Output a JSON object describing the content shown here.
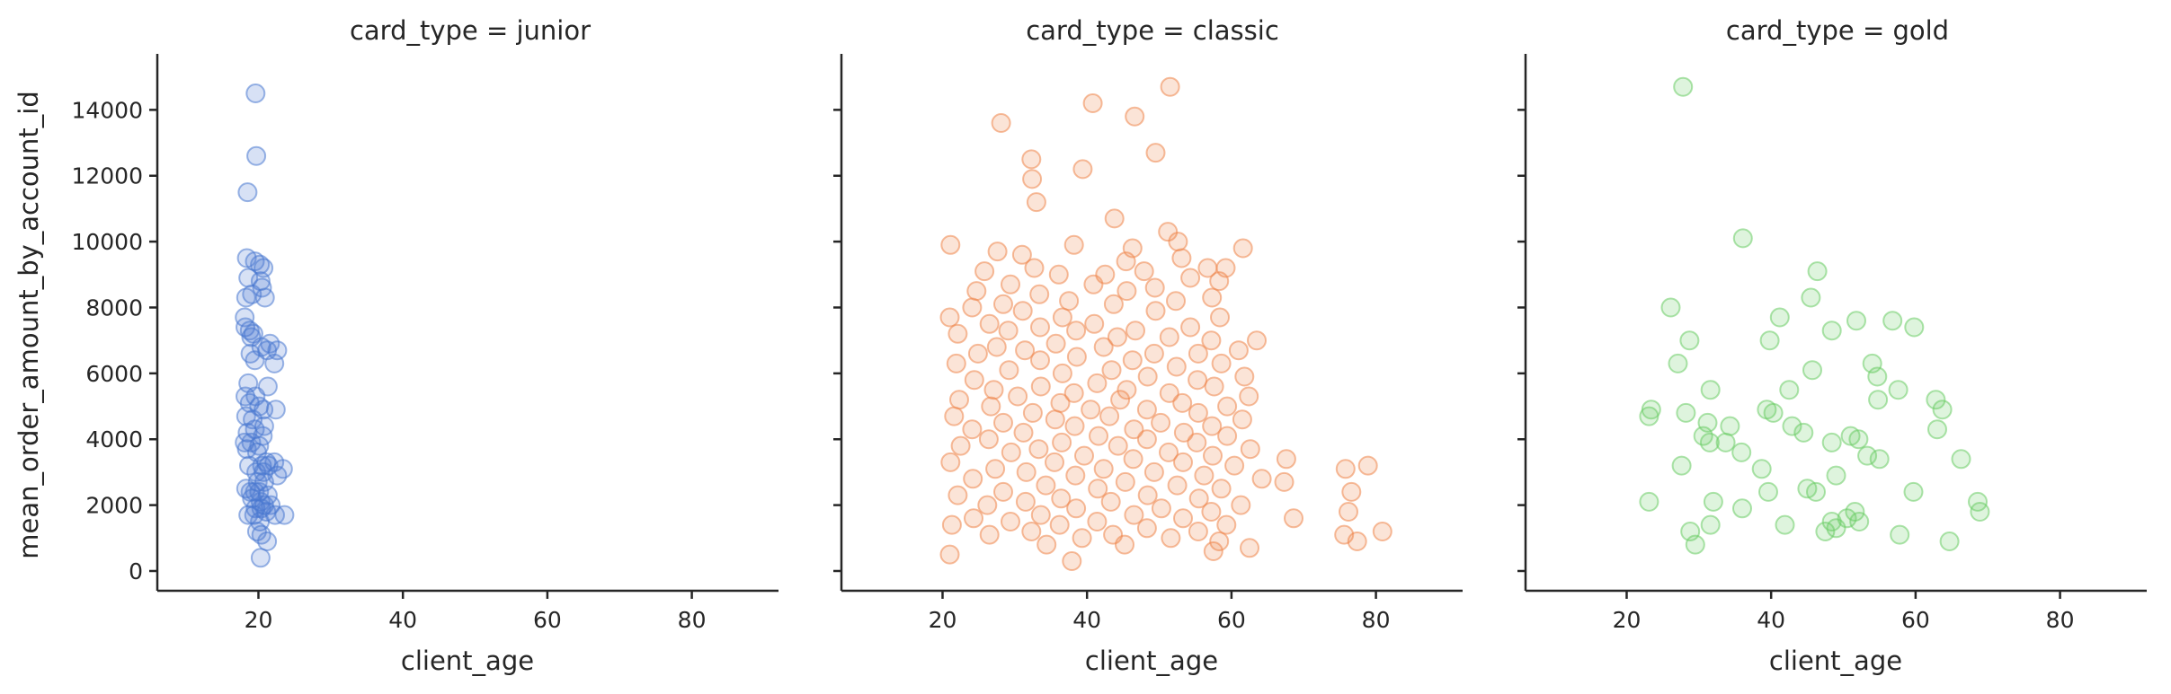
{
  "figure": {
    "ylabel": "mean_order_amount_by_account_id",
    "xlabel": "client_age"
  },
  "chart_data": [
    {
      "type": "scatter",
      "title": "card_type = junior",
      "xlabel": "client_age",
      "ylabel": "mean_order_amount_by_account_id",
      "xlim": [
        6,
        92
      ],
      "ylim": [
        -600,
        15700
      ],
      "xticks": [
        20,
        40,
        60,
        80
      ],
      "yticks": [
        0,
        2000,
        4000,
        6000,
        8000,
        10000,
        12000,
        14000
      ],
      "color": "#4878d0",
      "points": [
        [
          19.6,
          14500
        ],
        [
          19.7,
          12600
        ],
        [
          18.5,
          11500
        ],
        [
          18.4,
          9500
        ],
        [
          19.5,
          9400
        ],
        [
          20.2,
          9300
        ],
        [
          20.7,
          9200
        ],
        [
          18.6,
          8900
        ],
        [
          20.3,
          8800
        ],
        [
          20.5,
          8600
        ],
        [
          18.3,
          8300
        ],
        [
          19.1,
          8400
        ],
        [
          20.9,
          8300
        ],
        [
          18.1,
          7700
        ],
        [
          18.2,
          7400
        ],
        [
          18.8,
          7300
        ],
        [
          19.3,
          7200
        ],
        [
          19.0,
          7100
        ],
        [
          21.6,
          6900
        ],
        [
          20.4,
          6800
        ],
        [
          21.2,
          6700
        ],
        [
          22.6,
          6700
        ],
        [
          18.9,
          6600
        ],
        [
          19.5,
          6400
        ],
        [
          22.2,
          6300
        ],
        [
          18.6,
          5700
        ],
        [
          21.3,
          5600
        ],
        [
          18.2,
          5300
        ],
        [
          19.6,
          5300
        ],
        [
          18.8,
          5100
        ],
        [
          20.1,
          5000
        ],
        [
          20.7,
          4900
        ],
        [
          22.4,
          4900
        ],
        [
          18.3,
          4700
        ],
        [
          19.2,
          4600
        ],
        [
          20.8,
          4400
        ],
        [
          18.5,
          4200
        ],
        [
          19.5,
          4300
        ],
        [
          20.6,
          4100
        ],
        [
          18.1,
          3900
        ],
        [
          19.0,
          3900
        ],
        [
          20.1,
          3800
        ],
        [
          18.4,
          3700
        ],
        [
          19.8,
          3600
        ],
        [
          21.1,
          3300
        ],
        [
          22.2,
          3300
        ],
        [
          18.7,
          3200
        ],
        [
          20.5,
          3200
        ],
        [
          21.4,
          3200
        ],
        [
          23.4,
          3100
        ],
        [
          19.7,
          3000
        ],
        [
          20.7,
          3000
        ],
        [
          22.6,
          2900
        ],
        [
          19.9,
          2700
        ],
        [
          20.8,
          2700
        ],
        [
          18.3,
          2500
        ],
        [
          18.9,
          2400
        ],
        [
          19.5,
          2400
        ],
        [
          20.1,
          2400
        ],
        [
          21.3,
          2300
        ],
        [
          19.1,
          2200
        ],
        [
          20.3,
          2100
        ],
        [
          20.8,
          2000
        ],
        [
          21.7,
          2000
        ],
        [
          19.6,
          1900
        ],
        [
          20.4,
          1900
        ],
        [
          21.1,
          1800
        ],
        [
          18.6,
          1700
        ],
        [
          19.4,
          1700
        ],
        [
          22.3,
          1700
        ],
        [
          23.6,
          1700
        ],
        [
          20.2,
          1500
        ],
        [
          19.8,
          1200
        ],
        [
          20.4,
          1100
        ],
        [
          21.2,
          900
        ],
        [
          20.3,
          400
        ]
      ]
    },
    {
      "type": "scatter",
      "title": "card_type = classic",
      "xlabel": "client_age",
      "ylabel": "",
      "xlim": [
        6,
        92
      ],
      "ylim": [
        -600,
        15700
      ],
      "xticks": [
        20,
        40,
        60,
        80
      ],
      "yticks": [
        0,
        2000,
        4000,
        6000,
        8000,
        10000,
        12000,
        14000
      ],
      "color": "#ee854a",
      "points": [
        [
          51.5,
          14700
        ],
        [
          40.8,
          14200
        ],
        [
          46.6,
          13800
        ],
        [
          28.1,
          13600
        ],
        [
          49.5,
          12700
        ],
        [
          32.3,
          12500
        ],
        [
          39.4,
          12200
        ],
        [
          32.4,
          11900
        ],
        [
          33.0,
          11200
        ],
        [
          43.8,
          10700
        ],
        [
          51.2,
          10300
        ],
        [
          52.6,
          10000
        ],
        [
          21.1,
          9900
        ],
        [
          38.2,
          9900
        ],
        [
          46.3,
          9800
        ],
        [
          27.6,
          9700
        ],
        [
          31.0,
          9600
        ],
        [
          61.6,
          9800
        ],
        [
          53.1,
          9500
        ],
        [
          45.4,
          9400
        ],
        [
          56.7,
          9200
        ],
        [
          25.8,
          9100
        ],
        [
          59.2,
          9200
        ],
        [
          32.7,
          9200
        ],
        [
          47.9,
          9100
        ],
        [
          42.5,
          9000
        ],
        [
          36.1,
          9000
        ],
        [
          54.3,
          8900
        ],
        [
          58.3,
          8800
        ],
        [
          29.4,
          8700
        ],
        [
          40.9,
          8700
        ],
        [
          49.4,
          8600
        ],
        [
          24.7,
          8500
        ],
        [
          45.5,
          8500
        ],
        [
          33.4,
          8400
        ],
        [
          57.3,
          8300
        ],
        [
          37.5,
          8200
        ],
        [
          52.3,
          8200
        ],
        [
          28.4,
          8100
        ],
        [
          43.7,
          8100
        ],
        [
          24.1,
          8000
        ],
        [
          31.1,
          7900
        ],
        [
          49.5,
          7900
        ],
        [
          21.0,
          7700
        ],
        [
          36.6,
          7700
        ],
        [
          58.4,
          7700
        ],
        [
          26.5,
          7500
        ],
        [
          41.0,
          7500
        ],
        [
          54.3,
          7400
        ],
        [
          33.5,
          7400
        ],
        [
          46.7,
          7300
        ],
        [
          29.1,
          7300
        ],
        [
          38.5,
          7300
        ],
        [
          22.1,
          7200
        ],
        [
          51.4,
          7100
        ],
        [
          44.2,
          7100
        ],
        [
          57.2,
          7000
        ],
        [
          63.5,
          7000
        ],
        [
          35.7,
          6900
        ],
        [
          27.5,
          6800
        ],
        [
          42.3,
          6800
        ],
        [
          61.0,
          6700
        ],
        [
          31.4,
          6700
        ],
        [
          49.3,
          6600
        ],
        [
          55.4,
          6600
        ],
        [
          24.9,
          6600
        ],
        [
          38.6,
          6500
        ],
        [
          46.3,
          6400
        ],
        [
          33.5,
          6400
        ],
        [
          58.6,
          6300
        ],
        [
          21.9,
          6300
        ],
        [
          52.4,
          6200
        ],
        [
          43.4,
          6100
        ],
        [
          29.2,
          6100
        ],
        [
          36.6,
          6000
        ],
        [
          61.8,
          5900
        ],
        [
          48.4,
          5900
        ],
        [
          24.4,
          5800
        ],
        [
          55.3,
          5800
        ],
        [
          41.4,
          5700
        ],
        [
          33.6,
          5600
        ],
        [
          57.6,
          5600
        ],
        [
          27.1,
          5500
        ],
        [
          45.5,
          5500
        ],
        [
          38.2,
          5400
        ],
        [
          51.4,
          5400
        ],
        [
          62.4,
          5300
        ],
        [
          30.4,
          5300
        ],
        [
          44.6,
          5200
        ],
        [
          22.3,
          5200
        ],
        [
          36.3,
          5100
        ],
        [
          53.2,
          5100
        ],
        [
          59.4,
          5000
        ],
        [
          26.7,
          5000
        ],
        [
          48.3,
          4900
        ],
        [
          40.5,
          4900
        ],
        [
          32.5,
          4800
        ],
        [
          55.4,
          4800
        ],
        [
          21.6,
          4700
        ],
        [
          43.1,
          4700
        ],
        [
          61.5,
          4600
        ],
        [
          35.6,
          4600
        ],
        [
          50.2,
          4500
        ],
        [
          28.4,
          4500
        ],
        [
          57.3,
          4400
        ],
        [
          38.3,
          4400
        ],
        [
          46.5,
          4300
        ],
        [
          24.1,
          4300
        ],
        [
          53.4,
          4200
        ],
        [
          31.2,
          4200
        ],
        [
          41.6,
          4100
        ],
        [
          59.4,
          4100
        ],
        [
          26.4,
          4000
        ],
        [
          48.3,
          4000
        ],
        [
          36.5,
          3900
        ],
        [
          55.2,
          3900
        ],
        [
          22.5,
          3800
        ],
        [
          44.3,
          3800
        ],
        [
          62.6,
          3700
        ],
        [
          33.3,
          3700
        ],
        [
          51.3,
          3600
        ],
        [
          29.5,
          3600
        ],
        [
          39.6,
          3500
        ],
        [
          57.4,
          3500
        ],
        [
          46.4,
          3400
        ],
        [
          67.6,
          3400
        ],
        [
          21.1,
          3300
        ],
        [
          53.3,
          3300
        ],
        [
          35.5,
          3300
        ],
        [
          75.8,
          3100
        ],
        [
          78.9,
          3200
        ],
        [
          60.4,
          3200
        ],
        [
          42.3,
          3100
        ],
        [
          27.3,
          3100
        ],
        [
          49.3,
          3000
        ],
        [
          31.6,
          3000
        ],
        [
          56.2,
          2900
        ],
        [
          38.4,
          2900
        ],
        [
          64.2,
          2800
        ],
        [
          24.2,
          2800
        ],
        [
          45.3,
          2700
        ],
        [
          67.3,
          2700
        ],
        [
          52.5,
          2600
        ],
        [
          34.3,
          2600
        ],
        [
          41.5,
          2500
        ],
        [
          58.6,
          2500
        ],
        [
          28.4,
          2400
        ],
        [
          76.6,
          2400
        ],
        [
          48.4,
          2300
        ],
        [
          22.1,
          2300
        ],
        [
          36.4,
          2200
        ],
        [
          55.5,
          2200
        ],
        [
          31.5,
          2100
        ],
        [
          43.3,
          2100
        ],
        [
          61.3,
          2000
        ],
        [
          26.2,
          2000
        ],
        [
          50.3,
          1900
        ],
        [
          38.5,
          1900
        ],
        [
          57.2,
          1800
        ],
        [
          76.2,
          1800
        ],
        [
          33.6,
          1700
        ],
        [
          46.5,
          1700
        ],
        [
          24.3,
          1600
        ],
        [
          53.3,
          1600
        ],
        [
          68.6,
          1600
        ],
        [
          41.4,
          1500
        ],
        [
          29.4,
          1500
        ],
        [
          59.3,
          1400
        ],
        [
          21.3,
          1400
        ],
        [
          36.2,
          1400
        ],
        [
          48.3,
          1300
        ],
        [
          55.4,
          1200
        ],
        [
          32.3,
          1200
        ],
        [
          80.9,
          1200
        ],
        [
          43.6,
          1100
        ],
        [
          75.6,
          1100
        ],
        [
          26.5,
          1100
        ],
        [
          51.6,
          1000
        ],
        [
          39.3,
          1000
        ],
        [
          58.3,
          900
        ],
        [
          34.4,
          800
        ],
        [
          77.4,
          900
        ],
        [
          45.2,
          800
        ],
        [
          62.5,
          700
        ],
        [
          21.0,
          500
        ],
        [
          57.5,
          600
        ],
        [
          37.9,
          300
        ]
      ]
    },
    {
      "type": "scatter",
      "title": "card_type = gold",
      "xlabel": "client_age",
      "ylabel": "",
      "xlim": [
        6,
        92
      ],
      "ylim": [
        -600,
        15700
      ],
      "xticks": [
        20,
        40,
        60,
        80
      ],
      "yticks": [
        0,
        2000,
        4000,
        6000,
        8000,
        10000,
        12000,
        14000
      ],
      "color": "#6acc64",
      "points": [
        [
          27.8,
          14700
        ],
        [
          36.1,
          10100
        ],
        [
          46.4,
          9100
        ],
        [
          45.5,
          8300
        ],
        [
          26.1,
          8000
        ],
        [
          41.2,
          7700
        ],
        [
          51.8,
          7600
        ],
        [
          56.8,
          7600
        ],
        [
          59.8,
          7400
        ],
        [
          48.4,
          7300
        ],
        [
          28.7,
          7000
        ],
        [
          39.8,
          7000
        ],
        [
          27.1,
          6300
        ],
        [
          54.0,
          6300
        ],
        [
          45.7,
          6100
        ],
        [
          54.7,
          5900
        ],
        [
          57.6,
          5500
        ],
        [
          42.5,
          5500
        ],
        [
          31.6,
          5500
        ],
        [
          54.8,
          5200
        ],
        [
          62.8,
          5200
        ],
        [
          63.7,
          4900
        ],
        [
          23.4,
          4900
        ],
        [
          39.4,
          4900
        ],
        [
          28.2,
          4800
        ],
        [
          40.3,
          4800
        ],
        [
          23.1,
          4700
        ],
        [
          31.2,
          4500
        ],
        [
          34.3,
          4400
        ],
        [
          42.9,
          4400
        ],
        [
          63.0,
          4300
        ],
        [
          44.5,
          4200
        ],
        [
          51.0,
          4100
        ],
        [
          30.6,
          4100
        ],
        [
          52.1,
          4000
        ],
        [
          31.5,
          3900
        ],
        [
          33.7,
          3900
        ],
        [
          48.4,
          3900
        ],
        [
          35.9,
          3600
        ],
        [
          53.3,
          3500
        ],
        [
          55.0,
          3400
        ],
        [
          66.3,
          3400
        ],
        [
          27.6,
          3200
        ],
        [
          38.7,
          3100
        ],
        [
          49.0,
          2900
        ],
        [
          45.0,
          2500
        ],
        [
          46.2,
          2400
        ],
        [
          39.6,
          2400
        ],
        [
          59.7,
          2400
        ],
        [
          23.1,
          2100
        ],
        [
          32.0,
          2100
        ],
        [
          68.6,
          2100
        ],
        [
          36.0,
          1900
        ],
        [
          51.6,
          1800
        ],
        [
          68.9,
          1800
        ],
        [
          50.5,
          1600
        ],
        [
          48.4,
          1500
        ],
        [
          52.2,
          1500
        ],
        [
          31.6,
          1400
        ],
        [
          41.9,
          1400
        ],
        [
          49.0,
          1300
        ],
        [
          28.8,
          1200
        ],
        [
          47.5,
          1200
        ],
        [
          57.8,
          1100
        ],
        [
          64.7,
          900
        ],
        [
          29.5,
          800
        ]
      ]
    }
  ]
}
